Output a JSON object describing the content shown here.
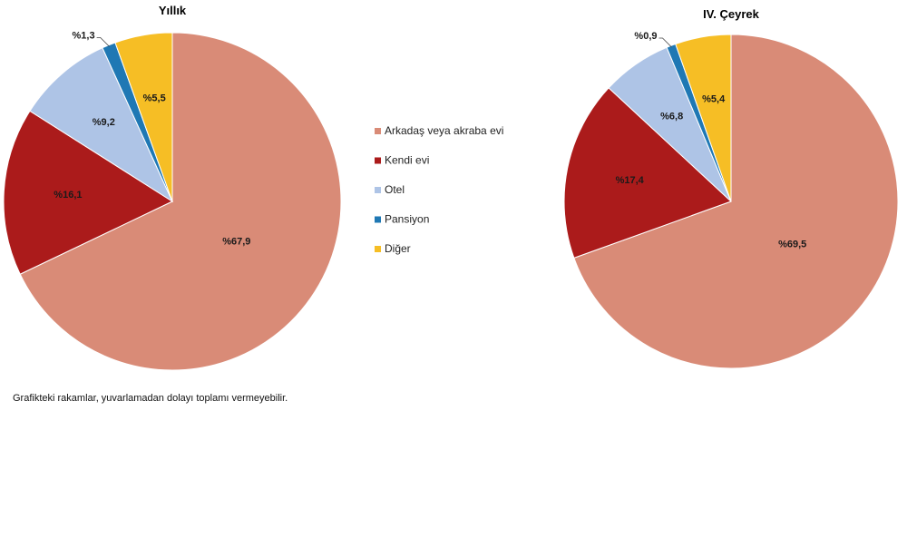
{
  "footnote": "Grafikteki rakamlar, yuvarlamadan dolayı toplamı vermeyebilir.",
  "legend": [
    {
      "name": "Arkadaş veya akraba evi",
      "color": "#d98b77"
    },
    {
      "name": "Kendi evi",
      "color": "#ab1b1b"
    },
    {
      "name": "Otel",
      "color": "#aec4e6"
    },
    {
      "name": "Pansiyon",
      "color": "#1f78b4"
    },
    {
      "name": "Diğer",
      "color": "#f6be25"
    }
  ],
  "chart_data": [
    {
      "type": "pie",
      "title": "Yıllık",
      "slices": [
        {
          "name": "Arkadaş veya akraba evi",
          "value": 67.9,
          "label": "%67,9"
        },
        {
          "name": "Kendi evi",
          "value": 16.1,
          "label": "%16,1"
        },
        {
          "name": "Otel",
          "value": 9.2,
          "label": "%9,2"
        },
        {
          "name": "Pansiyon",
          "value": 1.3,
          "label": "%1,3"
        },
        {
          "name": "Diğer",
          "value": 5.5,
          "label": "%5,5"
        }
      ]
    },
    {
      "type": "pie",
      "title": "IV. Çeyrek",
      "slices": [
        {
          "name": "Arkadaş veya akraba evi",
          "value": 69.5,
          "label": "%69,5"
        },
        {
          "name": "Kendi evi",
          "value": 17.4,
          "label": "%17,4"
        },
        {
          "name": "Otel",
          "value": 6.8,
          "label": "%6,8"
        },
        {
          "name": "Pansiyon",
          "value": 0.9,
          "label": "%0,9"
        },
        {
          "name": "Diğer",
          "value": 5.4,
          "label": "%5,4"
        }
      ]
    }
  ]
}
